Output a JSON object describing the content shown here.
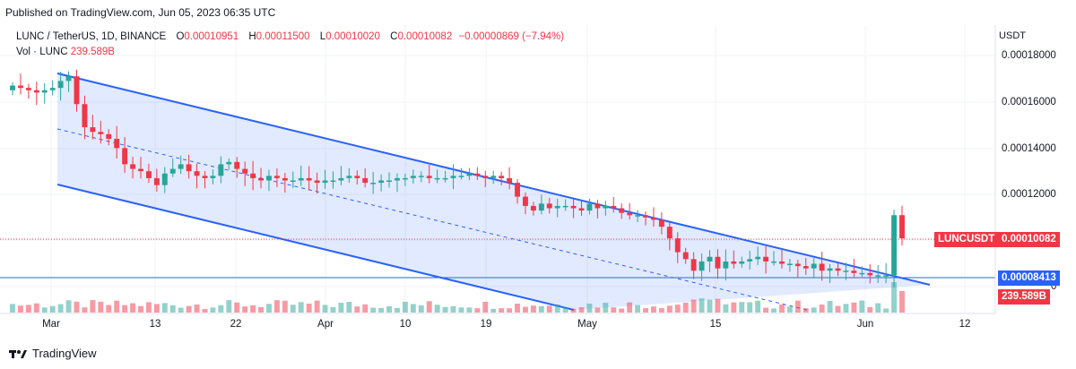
{
  "header": {
    "published": "Published on TradingView.com, Jun 05, 2023 06:35 UTC"
  },
  "legend": {
    "symbol": "LUNC / TetherUS, 1D, BINANCE",
    "o_label": "O",
    "o_value": "0.00010951",
    "h_label": "H",
    "h_value": "0.00011500",
    "l_label": "L",
    "l_value": "0.00010020",
    "c_label": "C",
    "c_value": "0.00010082",
    "change": "−0.00000869 (−7.94%)",
    "vol_label": "Vol · LUNC",
    "vol_value": "239.589B"
  },
  "price_axis": {
    "currency": "USDT",
    "ticks": [
      "0.00018000",
      "0.00016000",
      "0.00014000",
      "0.00012000"
    ],
    "ticks_partial": "0"
  },
  "time_axis": {
    "ticks": [
      "Mar",
      "13",
      "22",
      "Apr",
      "10",
      "19",
      "May",
      "15",
      "Jun",
      "12"
    ]
  },
  "tags": {
    "symbol_tag": "LUNCUSDT",
    "last_price": "0.00010082",
    "hline_price": "0.00008413",
    "volume": "239.589B"
  },
  "footer": {
    "brand": "TradingView"
  },
  "colors": {
    "up": "#26a69a",
    "down": "#f23645",
    "channel": "#2962ff",
    "channel_fill": "#2962ff22"
  },
  "chart_data": {
    "type": "candlestick",
    "symbol": "LUNC / TetherUS",
    "interval": "1D",
    "ylim": [
      6.5e-05,
      0.00019
    ],
    "last_close": 0.00010082,
    "horizontal_line": 8.413e-05,
    "closes": [
      0.000167,
      0.000166,
      0.000165,
      0.000164,
      0.000165,
      0.000166,
      0.000169,
      0.000171,
      0.000159,
      0.000149,
      0.000147,
      0.000146,
      0.000144,
      0.00014,
      0.000133,
      0.000131,
      0.00013,
      0.000127,
      0.000124,
      0.000129,
      0.000131,
      0.000133,
      0.00013,
      0.000128,
      0.000127,
      0.000128,
      0.000133,
      0.000134,
      0.000131,
      0.000129,
      0.000127,
      0.000126,
      0.000128,
      0.000127,
      0.000126,
      0.000126,
      0.000127,
      0.000126,
      0.000125,
      0.000126,
      0.000126,
      0.000127,
      0.000128,
      0.000127,
      0.000125,
      0.000125,
      0.000126,
      0.000126,
      0.000127,
      0.000127,
      0.000128,
      0.000128,
      0.000127,
      0.000127,
      0.000127,
      0.000128,
      0.000128,
      0.000129,
      0.000128,
      0.000127,
      0.000128,
      0.000127,
      0.000125,
      0.000119,
      0.000115,
      0.000113,
      0.000116,
      0.000114,
      0.000115,
      0.000115,
      0.000114,
      0.000113,
      0.000116,
      0.000114,
      0.000115,
      0.000114,
      0.000112,
      0.000111,
      0.000111,
      0.00011,
      0.000109,
      0.000106,
      0.000101,
      9.5e-05,
      9.2e-05,
      8.7e-05,
      9.1e-05,
      9.3e-05,
      8.8e-05,
      9.1e-05,
      9e-05,
      9.1e-05,
      9.2e-05,
      9.3e-05,
      9.1e-05,
      9.1e-05,
      9e-05,
      9e-05,
      8.9e-05,
      8.8e-05,
      9e-05,
      8.7e-05,
      8.8e-05,
      8.7e-05,
      8.7e-05,
      8.6e-05,
      8.6e-05,
      8.5e-05,
      8.5e-05,
      8.5e-05,
      0.000111,
      0.000101
    ]
  }
}
